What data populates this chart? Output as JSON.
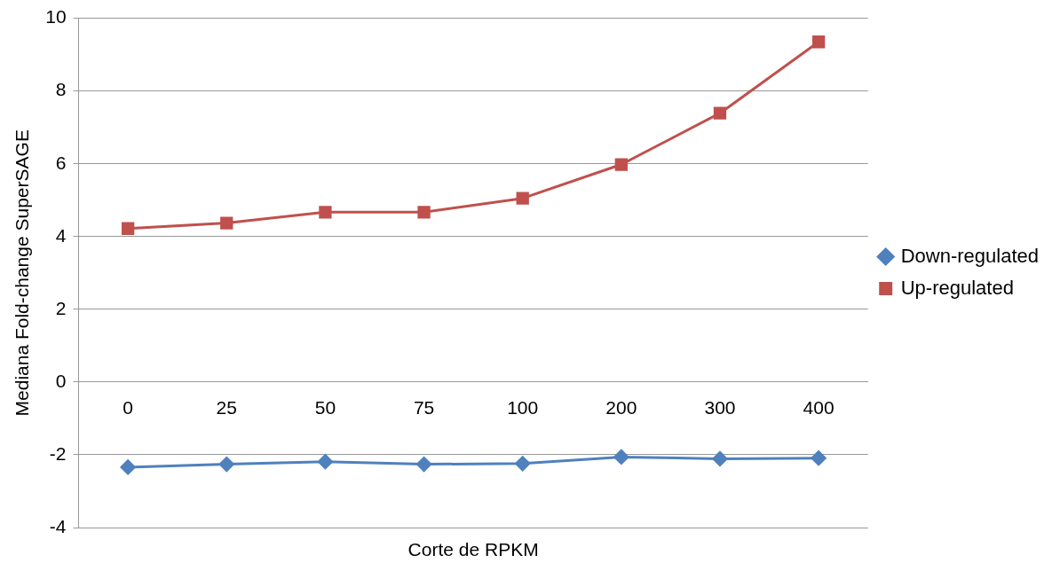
{
  "chart_data": {
    "type": "line",
    "xlabel": "Corte de RPKM",
    "ylabel": "Mediana Fold-change SuperSAGE",
    "categories": [
      "0",
      "25",
      "50",
      "75",
      "100",
      "200",
      "300",
      "400"
    ],
    "series": [
      {
        "name": "Down-regulated",
        "color": "#4f81bd",
        "marker": "diamond",
        "values": [
          -2.34,
          -2.26,
          -2.19,
          -2.26,
          -2.24,
          -2.06,
          -2.11,
          -2.09
        ]
      },
      {
        "name": "Up-regulated",
        "color": "#c0504d",
        "marker": "square",
        "values": [
          4.22,
          4.37,
          4.67,
          4.67,
          5.05,
          5.98,
          7.39,
          9.35
        ]
      }
    ],
    "ylim": [
      -4,
      10
    ],
    "yticks": [
      -4,
      -2,
      0,
      2,
      4,
      6,
      8,
      10
    ],
    "grid": "y",
    "legend": "right"
  }
}
